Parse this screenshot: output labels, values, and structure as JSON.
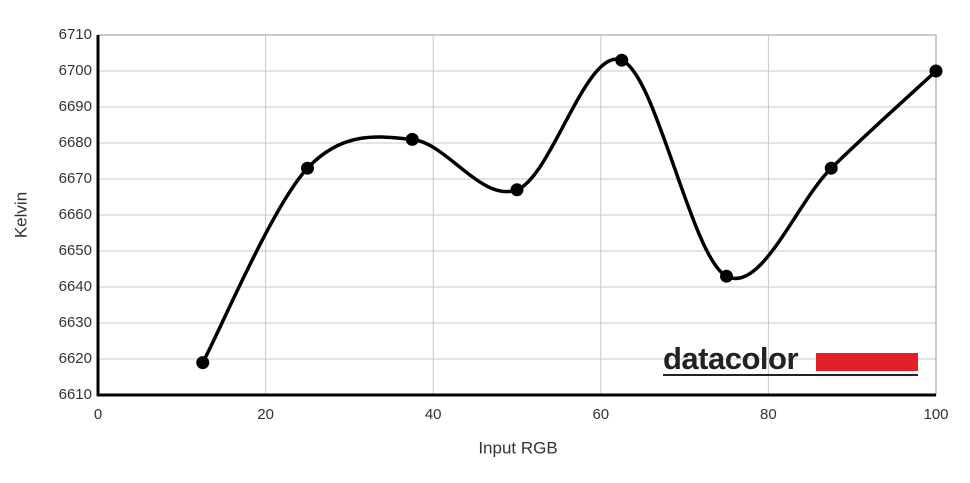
{
  "chart_data": {
    "type": "line",
    "x_label": "Input RGB",
    "y_label": "Kelvin",
    "logo": "datacolor",
    "x": [
      12.5,
      25,
      37.5,
      50,
      62.5,
      75,
      87.5,
      100
    ],
    "series": [
      {
        "color": "#000000",
        "values": [
          6619,
          6673,
          6681,
          6667,
          6703,
          6643,
          6673,
          6700
        ]
      }
    ],
    "xlim": [
      0,
      100
    ],
    "xticks": [
      0,
      20,
      40,
      60,
      80,
      100
    ],
    "ylim": [
      6610,
      6710
    ],
    "yticks": [
      6610,
      6620,
      6630,
      6640,
      6650,
      6660,
      6670,
      6680,
      6690,
      6700,
      6710
    ],
    "grid": true,
    "smooth": true
  }
}
